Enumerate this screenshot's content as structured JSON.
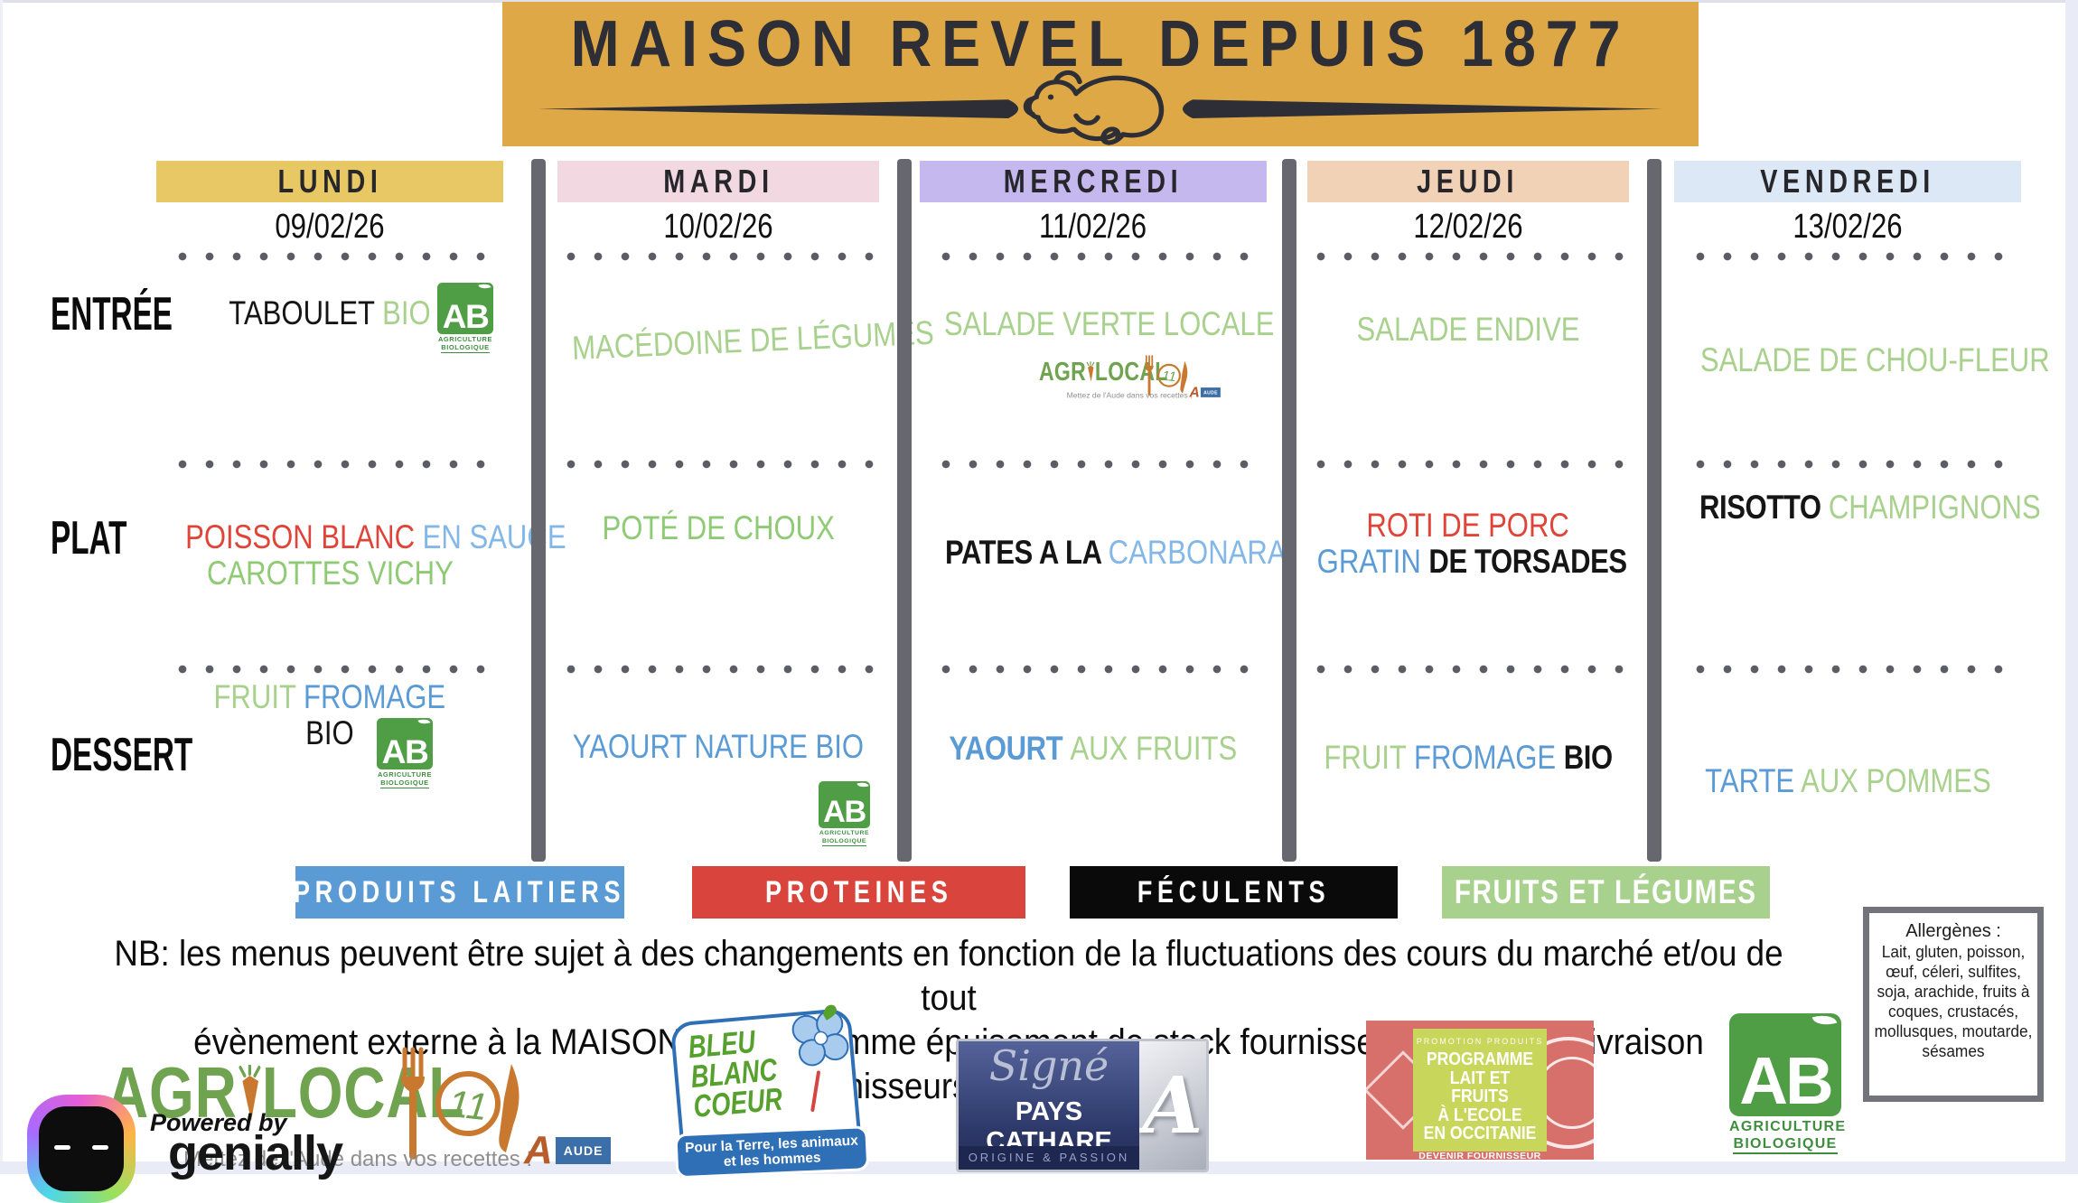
{
  "banner": {
    "title": "MAISON REVEL DEPUIS 1877"
  },
  "row_labels": [
    {
      "label": "ENTRÉE"
    },
    {
      "label": "PLAT"
    },
    {
      "label": "DESSERT"
    }
  ],
  "palette": {
    "green1": "#A9D18E",
    "green2": "#8FCA74",
    "blue": "#5B9BD5",
    "lightblue": "#82B7E8",
    "red": "#E04438",
    "banner_gold": "#DDA845",
    "bar_gray": "#67676F"
  },
  "days": [
    {
      "name": "LUNDI",
      "date": "09/02/26",
      "color": "#E8C865",
      "entree": [
        [
          {
            "t": "TABOULET ",
            "c": "black",
            "f": "n"
          },
          {
            "t": "BIO",
            "c": "green1",
            "f": "n"
          }
        ]
      ],
      "plat": [
        [
          {
            "t": "POISSON BLANC ",
            "c": "red",
            "f": "n"
          },
          {
            "t": "EN SAUCE",
            "c": "lightblue",
            "f": "n"
          }
        ],
        [
          {
            "t": "CAROTTES VICHY",
            "c": "green2",
            "f": "n"
          }
        ]
      ],
      "dessert": [
        [
          {
            "t": "FRUIT ",
            "c": "green1",
            "f": "n"
          },
          {
            "t": "FROMAGE",
            "c": "blue",
            "f": "n"
          }
        ],
        [
          {
            "t": "BIO",
            "c": "black",
            "f": "n"
          }
        ]
      ]
    },
    {
      "name": "MARDI",
      "date": "10/02/26",
      "color": "#F2D9E1",
      "entree": [
        [
          {
            "t": "MACÉDOINE DE LÉGUMES",
            "c": "green1",
            "f": "n"
          }
        ]
      ],
      "plat": [
        [
          {
            "t": "POTÉ DE CHOUX",
            "c": "green2",
            "f": "n"
          }
        ]
      ],
      "dessert": [
        [
          {
            "t": "YAOURT NATURE BIO",
            "c": "blue",
            "f": "n"
          }
        ]
      ]
    },
    {
      "name": "MERCREDI",
      "date": "11/02/26",
      "color": "#C4B8EE",
      "entree": [
        [
          {
            "t": "SALADE VERTE LOCALE",
            "c": "green1",
            "f": "n"
          }
        ]
      ],
      "plat": [
        [
          {
            "t": "PATES A LA ",
            "c": "black",
            "f": "d"
          },
          {
            "t": "CARBONARA",
            "c": "lightblue",
            "f": "n"
          }
        ]
      ],
      "dessert": [
        [
          {
            "t": "YAOURT ",
            "c": "blue",
            "f": "d"
          },
          {
            "t": "AUX FRUITS",
            "c": "green1",
            "f": "n"
          }
        ]
      ]
    },
    {
      "name": "JEUDI",
      "date": "12/02/26",
      "color": "#F2D2B6",
      "entree": [
        [
          {
            "t": "SALADE ENDIVE",
            "c": "green1",
            "f": "n"
          }
        ]
      ],
      "plat": [
        [
          {
            "t": "ROTI DE PORC",
            "c": "red",
            "f": "n"
          }
        ],
        [
          {
            "t": "GRATIN ",
            "c": "blue",
            "f": "n"
          },
          {
            "t": "DE TORSADES",
            "c": "black",
            "f": "d"
          }
        ]
      ],
      "dessert": [
        [
          {
            "t": "FRUIT ",
            "c": "green1",
            "f": "n"
          },
          {
            "t": "FROMAGE ",
            "c": "blue",
            "f": "n"
          },
          {
            "t": "BIO",
            "c": "black",
            "f": "d"
          }
        ]
      ]
    },
    {
      "name": "VENDREDI",
      "date": "13/02/26",
      "color": "#DDE8F6",
      "entree": [
        [
          {
            "t": "SALADE DE CHOU-FLEUR",
            "c": "green1",
            "f": "n"
          }
        ]
      ],
      "plat": [
        [
          {
            "t": "RISOTTO ",
            "c": "black",
            "f": "d"
          },
          {
            "t": "CHAMPIGNONS",
            "c": "green1",
            "f": "n"
          }
        ]
      ],
      "dessert": [
        [
          {
            "t": "TARTE ",
            "c": "blue",
            "f": "n"
          },
          {
            "t": "AUX POMMES",
            "c": "green1",
            "f": "n"
          }
        ]
      ]
    }
  ],
  "ab_logo": {
    "letters": "AB",
    "caption1": "AGRICULTURE",
    "caption2": "BIOLOGIQUE"
  },
  "agrilocal": {
    "pre": "AGR",
    "post": "LOCAL",
    "number": "11",
    "tagline": "Mettez de l'Aude dans vos recettes !"
  },
  "legend": [
    {
      "label": "PRODUITS LAITIERS",
      "color": "#5B9BD5"
    },
    {
      "label": "PROTEINES",
      "color": "#D9453C"
    },
    {
      "label": "FÉCULENTS",
      "color": "#0A0A0A"
    },
    {
      "label": "FRUITS ET LÉGUMES",
      "color": "#A9D18E"
    }
  ],
  "note": {
    "line1": "NB: les menus peuvent être sujet à des changements en fonction de la fluctuations des cours du marché et/ou de tout",
    "line2": "évènement externe à la MAISON REVEL  comme épuisement de stock fournisseurs, retard de livraison fournisseurs ou autre."
  },
  "allergens": {
    "title": "Allergènes :",
    "text": "Lait, gluten, poisson,\nœuf, céleri, sulfites,\nsoja, arachide, fruits à\ncoques, crustacés,\nmollusques, moutarde,\nsésames"
  },
  "footer": {
    "genially": {
      "powered_by": "Powered by",
      "brand": "genially"
    },
    "aude": {
      "a": "A",
      "label": "AUDE"
    },
    "bbc": {
      "l1": "BLEU",
      "l2": "BLANC",
      "l3": "COEUR",
      "banner1": "Pour la Terre, les animaux",
      "banner2": "et les hommes"
    },
    "cathare": {
      "script": "Signé",
      "name": "PAYS CATHARE",
      "sub": "ORIGINE & PASSION",
      "letter": "A"
    },
    "occitanie": {
      "kicker": "PROMOTION PRODUITS",
      "l1": "PROGRAMME",
      "l2": "LAIT ET FRUITS",
      "l3": "À L'ECOLE",
      "l4": "EN OCCITANIE",
      "sub": "DEVENIR FOURNISSEUR"
    }
  }
}
